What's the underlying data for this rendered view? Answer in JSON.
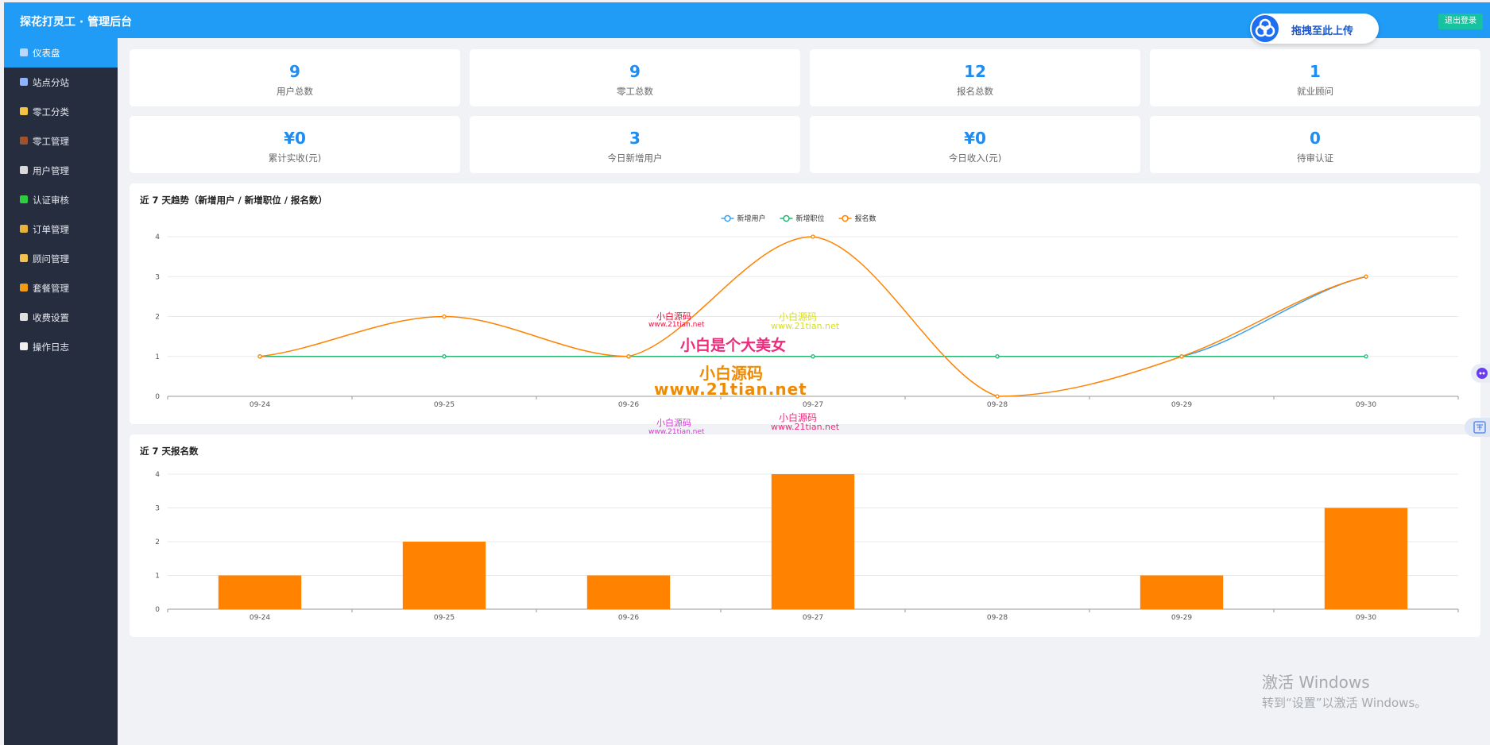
{
  "app": {
    "title": "探花打灵工 · 管理后台",
    "logout_label": "退出登录",
    "upload_label": "拖拽至此上传"
  },
  "sidebar": {
    "items": [
      {
        "label": "仪表盘",
        "icon": "dashboard-icon",
        "color": "#bcd7ff",
        "active": true
      },
      {
        "label": "站点分站",
        "icon": "bar-chart-icon",
        "color": "#8fb3ff"
      },
      {
        "label": "零工分类",
        "icon": "folder-icon",
        "color": "#f5c542"
      },
      {
        "label": "零工管理",
        "icon": "briefcase-icon",
        "color": "#a0522d"
      },
      {
        "label": "用户管理",
        "icon": "user-icon",
        "color": "#d9d9d9"
      },
      {
        "label": "认证审核",
        "icon": "check-box-icon",
        "color": "#2ecc40"
      },
      {
        "label": "订单管理",
        "icon": "money-bag-icon",
        "color": "#e8b23a"
      },
      {
        "label": "顾问管理",
        "icon": "heart-hands-icon",
        "color": "#f2c14e"
      },
      {
        "label": "套餐管理",
        "icon": "gift-icon",
        "color": "#f39c12"
      },
      {
        "label": "收费设置",
        "icon": "gear-icon",
        "color": "#e0e0e0"
      },
      {
        "label": "操作日志",
        "icon": "document-icon",
        "color": "#f0f0f0"
      }
    ]
  },
  "stats": [
    {
      "value": "9",
      "label": "用户总数"
    },
    {
      "value": "9",
      "label": "零工总数"
    },
    {
      "value": "12",
      "label": "报名总数"
    },
    {
      "value": "1",
      "label": "就业顾问"
    },
    {
      "value": "¥0",
      "label": "累计实收(元)"
    },
    {
      "value": "3",
      "label": "今日新增用户"
    },
    {
      "value": "¥0",
      "label": "今日收入(元)"
    },
    {
      "value": "0",
      "label": "待审认证"
    }
  ],
  "chart_data": [
    {
      "type": "line",
      "title": "近 7 天趋势（新增用户 / 新增职位 / 报名数）",
      "categories": [
        "09-24",
        "09-25",
        "09-26",
        "09-27",
        "09-28",
        "09-29",
        "09-30"
      ],
      "series": [
        {
          "name": "新增用户",
          "color": "#3a9ff0",
          "values": [
            1,
            1,
            1,
            1,
            1,
            1,
            3
          ]
        },
        {
          "name": "新增职位",
          "color": "#22b573",
          "values": [
            1,
            1,
            1,
            1,
            1,
            1,
            1
          ]
        },
        {
          "name": "报名数",
          "color": "#ff8200",
          "values": [
            1,
            2,
            1,
            4,
            0,
            1,
            3
          ]
        }
      ],
      "ylim": [
        0,
        4
      ],
      "yticks": [
        "0",
        "1",
        "2",
        "3",
        "4"
      ],
      "legend": "top-center",
      "smooth": true,
      "grid": true
    },
    {
      "type": "bar",
      "title": "近 7 天报名数",
      "categories": [
        "09-24",
        "09-25",
        "09-26",
        "09-27",
        "09-28",
        "09-29",
        "09-30"
      ],
      "values": [
        1,
        2,
        1,
        4,
        0,
        1,
        3
      ],
      "color": "#ff8200",
      "ylim": [
        0,
        4
      ],
      "yticks": [
        "0",
        "1",
        "2",
        "3",
        "4"
      ],
      "grid": true
    }
  ],
  "watermarks": [
    {
      "text": "小白源码",
      "color": "#e8123c"
    },
    {
      "text": "www.21tian.net",
      "color": "#e8123c"
    },
    {
      "text": "小白源码",
      "color": "#d8e020"
    },
    {
      "text": "www.21tian.net",
      "color": "#d8e020"
    },
    {
      "text": "小白是个大美女",
      "color": "#ee2a7b"
    },
    {
      "text": "小白源码",
      "color": "#f08a00"
    },
    {
      "text": "www.21tian.net",
      "color": "#f08a00"
    },
    {
      "text": "小白源码",
      "color": "#d838d8"
    },
    {
      "text": "www.21tian.net",
      "color": "#d838d8"
    },
    {
      "text": "小白源码",
      "color": "#ee2a7b"
    },
    {
      "text": "www.21tian.net",
      "color": "#ee2a7b"
    }
  ],
  "windows_activation": {
    "line1": "激活 Windows",
    "line2": "转到“设置”以激活 Windows。"
  }
}
